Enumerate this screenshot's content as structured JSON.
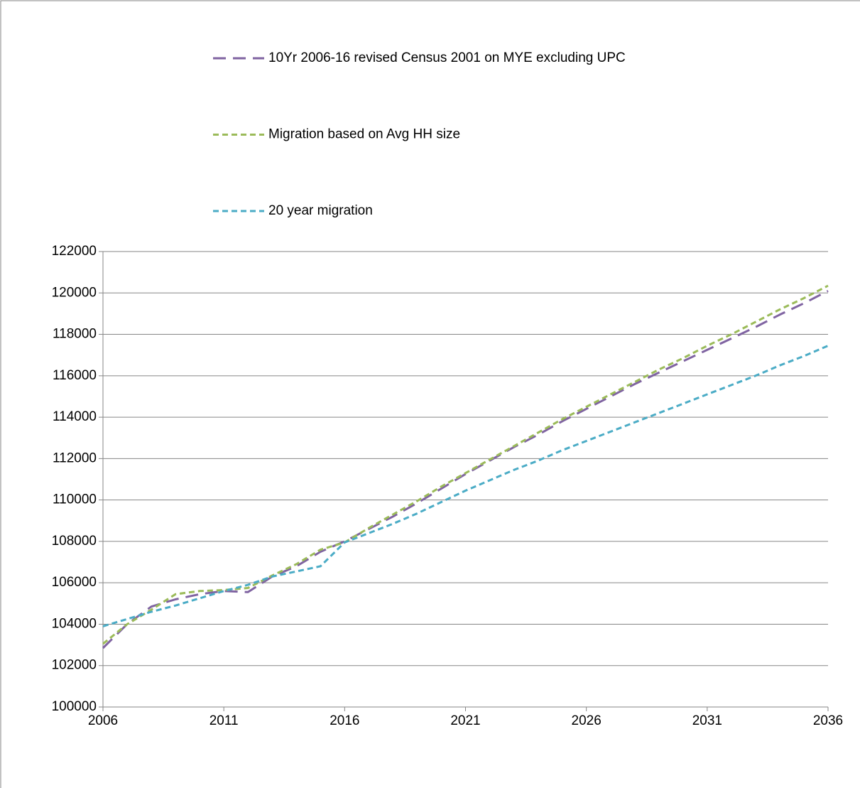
{
  "chart_data": {
    "type": "line",
    "x": [
      2006,
      2007,
      2008,
      2009,
      2010,
      2011,
      2012,
      2013,
      2014,
      2015,
      2016,
      2017,
      2018,
      2019,
      2020,
      2021,
      2022,
      2023,
      2024,
      2025,
      2026,
      2027,
      2028,
      2029,
      2030,
      2031,
      2032,
      2033,
      2034,
      2035,
      2036
    ],
    "series": [
      {
        "name": "10Yr  2006-16 revised Census 2001 on MYE excluding UPC",
        "color": "#8064a2",
        "dash": "long",
        "values": [
          102850,
          104000,
          104850,
          105200,
          105450,
          105600,
          105550,
          106300,
          106800,
          107500,
          108000,
          108600,
          109200,
          109850,
          110550,
          111250,
          111900,
          112550,
          113150,
          113800,
          114400,
          115000,
          115600,
          116150,
          116700,
          117250,
          117800,
          118350,
          118950,
          119500,
          120100
        ]
      },
      {
        "name": "Migration based on Avg HH size",
        "color": "#9bbb59",
        "dash": "short",
        "values": [
          103050,
          104000,
          104700,
          105450,
          105600,
          105650,
          105750,
          106350,
          106900,
          107600,
          107950,
          108650,
          109300,
          109950,
          110650,
          111300,
          111950,
          112600,
          113250,
          113900,
          114500,
          115100,
          115700,
          116300,
          116850,
          117450,
          118000,
          118600,
          119200,
          119750,
          120350
        ]
      },
      {
        "name": "20 year migration",
        "color": "#4bacc6",
        "dash": "short",
        "values": [
          103900,
          104250,
          104600,
          104900,
          105250,
          105600,
          105900,
          106300,
          106550,
          106800,
          107950,
          108400,
          108850,
          109350,
          109900,
          110450,
          110950,
          111450,
          111900,
          112400,
          112850,
          113300,
          113750,
          114200,
          114650,
          115100,
          115550,
          116000,
          116500,
          116950,
          117450
        ]
      }
    ],
    "xlim": [
      2006,
      2036
    ],
    "xticks": [
      2006,
      2011,
      2016,
      2021,
      2026,
      2031,
      2036
    ],
    "ylim": [
      100000,
      122000
    ],
    "yticks": [
      100000,
      102000,
      104000,
      106000,
      108000,
      110000,
      112000,
      114000,
      116000,
      118000,
      120000,
      122000
    ],
    "grid": true,
    "legend": "top"
  }
}
